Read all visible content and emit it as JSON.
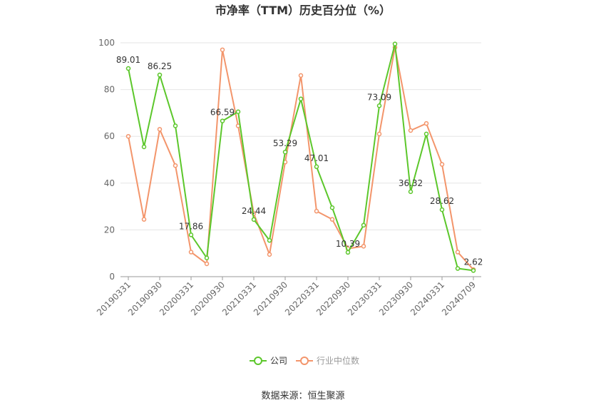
{
  "chart_data": {
    "type": "line",
    "title": "市净率（TTM）历史百分位（%）",
    "source": "数据来源：恒生聚源",
    "categories": [
      "20190331",
      null,
      "20190930",
      null,
      "20200331",
      null,
      "20200930",
      null,
      "20210331",
      null,
      "20210930",
      null,
      "20220331",
      null,
      "20220930",
      null,
      "20230331",
      null,
      "20230930",
      null,
      "20240331",
      null,
      "20240709"
    ],
    "series": [
      {
        "name": "公司",
        "color": "#5cc72b",
        "values": [
          89.01,
          55.5,
          86.25,
          64.5,
          17.86,
          8,
          66.59,
          70.5,
          24.44,
          15.5,
          53.29,
          76,
          47.01,
          29.5,
          10.39,
          22,
          73.09,
          99.5,
          36.32,
          61,
          28.62,
          3.5,
          2.62
        ],
        "value_labels": [
          "89.01",
          null,
          "86.25",
          null,
          "17.86",
          null,
          "66.59",
          null,
          "24.44",
          null,
          "53.29",
          null,
          "47.01",
          null,
          "10.39",
          null,
          "73.09",
          null,
          "36.32",
          null,
          "28.62",
          null,
          "2.62"
        ]
      },
      {
        "name": "行业中位数",
        "color": "#f3956b",
        "values": [
          60,
          24.5,
          63,
          47.5,
          10.5,
          5.5,
          97,
          64.5,
          27,
          9.5,
          49,
          86,
          28,
          24.5,
          12,
          13,
          61,
          98,
          62.5,
          65.5,
          48,
          10.5,
          3
        ]
      }
    ],
    "ylim": [
      0,
      100
    ],
    "yticks": [
      0,
      20,
      40,
      60,
      80,
      100
    ],
    "grid": true
  }
}
